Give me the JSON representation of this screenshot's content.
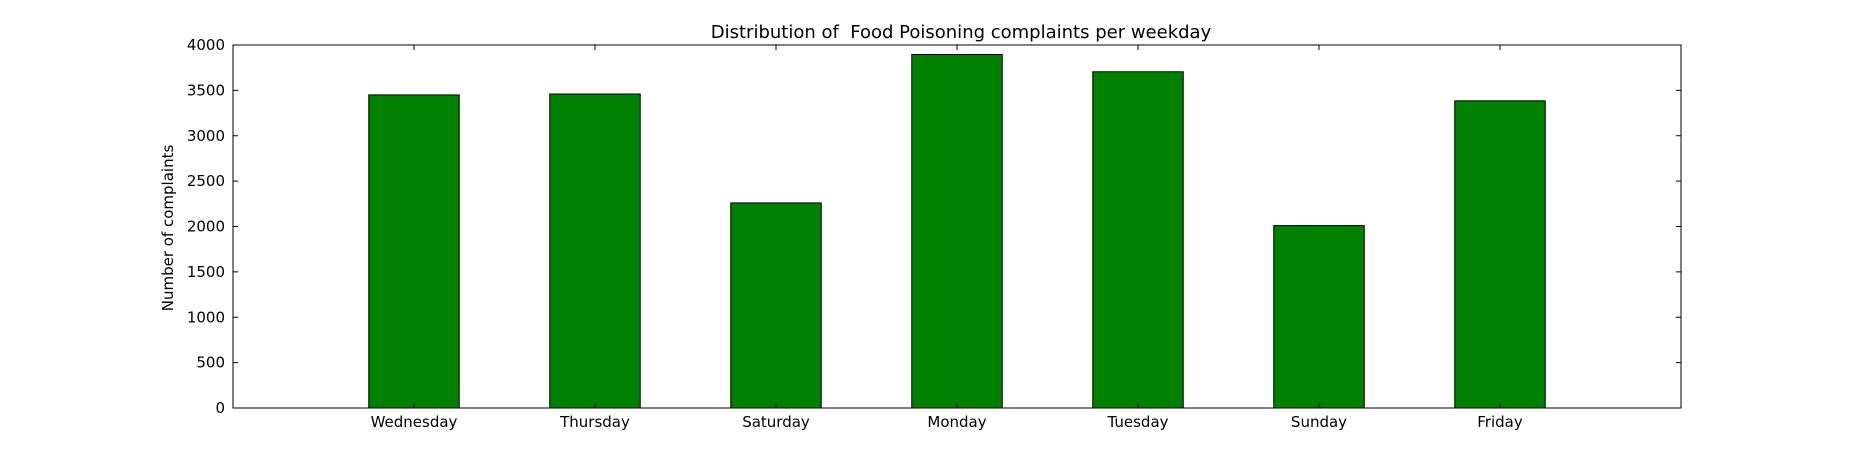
{
  "chart_data": {
    "type": "bar",
    "title": "Distribution of  Food Poisoning complaints per weekday",
    "xlabel": "",
    "ylabel": "Number of complaints",
    "categories": [
      "Wednesday",
      "Thursday",
      "Saturday",
      "Monday",
      "Tuesday",
      "Sunday",
      "Friday"
    ],
    "values": [
      3450,
      3460,
      2260,
      3895,
      3705,
      2010,
      3385
    ],
    "ylim": [
      0,
      4000
    ],
    "yticks": [
      0,
      500,
      1000,
      1500,
      2000,
      2500,
      3000,
      3500,
      4000
    ],
    "bar_color": "#008000",
    "edge_color": "#000000",
    "grid": false,
    "legend": "none"
  }
}
